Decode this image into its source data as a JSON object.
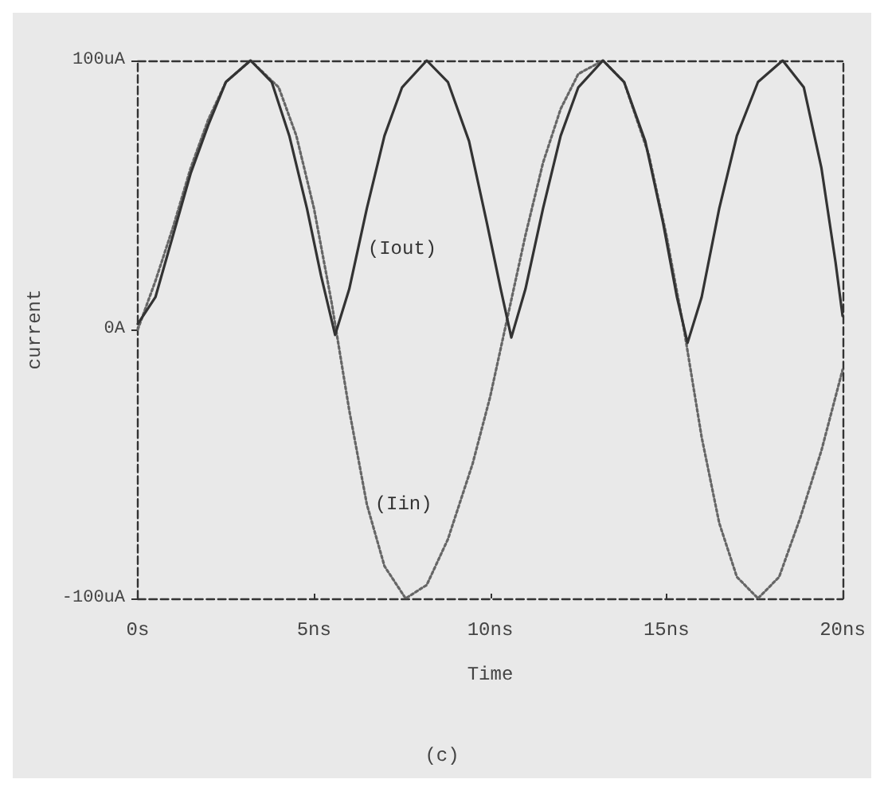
{
  "chart_data": {
    "type": "line",
    "xlabel": "Time",
    "ylabel": "current",
    "x": [
      0,
      0.5,
      1,
      1.5,
      2,
      2.5,
      3.2,
      4,
      4.5,
      5,
      5.5,
      6,
      6.5,
      7,
      7.6,
      8.2,
      8.8,
      9.5,
      10,
      10.5,
      11,
      11.5,
      12,
      12.5,
      13.2,
      13.8,
      14.5,
      15,
      15.5,
      16,
      16.5,
      17,
      17.6,
      18.2,
      18.8,
      19.4,
      20
    ],
    "series": [
      {
        "color": "#666666",
        "line_style": "dotted",
        "values": [
          0,
          18,
          38,
          60,
          78,
          92,
          100,
          90,
          72,
          45,
          10,
          -30,
          -65,
          -88,
          -100,
          -95,
          -78,
          -50,
          -25,
          5,
          35,
          62,
          82,
          95,
          100,
          92,
          65,
          35,
          0,
          -40,
          -72,
          -92,
          -100,
          -92,
          -70,
          -45,
          -15
        ]
      },
      {
        "color": "#333333",
        "line_style": "solid",
        "x": [
          0,
          0.5,
          1,
          1.5,
          2,
          2.5,
          3.2,
          3.8,
          4.3,
          4.8,
          5.2,
          5.6,
          6,
          6.5,
          7,
          7.5,
          8.2,
          8.8,
          9.4,
          9.9,
          10.3,
          10.6,
          11,
          11.5,
          12,
          12.5,
          13.2,
          13.8,
          14.4,
          14.9,
          15.3,
          15.6,
          16,
          16.5,
          17,
          17.6,
          18.3,
          18.9,
          19.4,
          19.8,
          20
        ],
        "values": [
          2,
          12,
          35,
          58,
          76,
          92,
          100,
          92,
          72,
          45,
          20,
          -2,
          15,
          45,
          72,
          90,
          100,
          92,
          70,
          40,
          15,
          -3,
          15,
          45,
          72,
          90,
          100,
          92,
          70,
          40,
          12,
          -5,
          12,
          45,
          72,
          92,
          100,
          90,
          60,
          25,
          5
        ]
      }
    ],
    "xlim": [
      0,
      20
    ],
    "xticks": [
      {
        "value": 0,
        "label": "0s"
      },
      {
        "value": 5,
        "label": "5ns"
      },
      {
        "value": 10,
        "label": "10ns"
      },
      {
        "value": 15,
        "label": "15ns"
      },
      {
        "value": 20,
        "label": "20ns"
      }
    ],
    "ylim": [
      -100,
      100
    ],
    "yticks": [
      {
        "value": -100,
        "label": "-100uA"
      },
      {
        "value": 0,
        "label": "0A"
      },
      {
        "value": 100,
        "label": "100uA"
      }
    ],
    "grid": false,
    "marker": "none",
    "annotations": [
      {
        "text": "(Iout)",
        "x": 6.3,
        "y": 30
      },
      {
        "text": "(Iin)",
        "x": 6.5,
        "y": -65
      },
      "(c)"
    ]
  }
}
